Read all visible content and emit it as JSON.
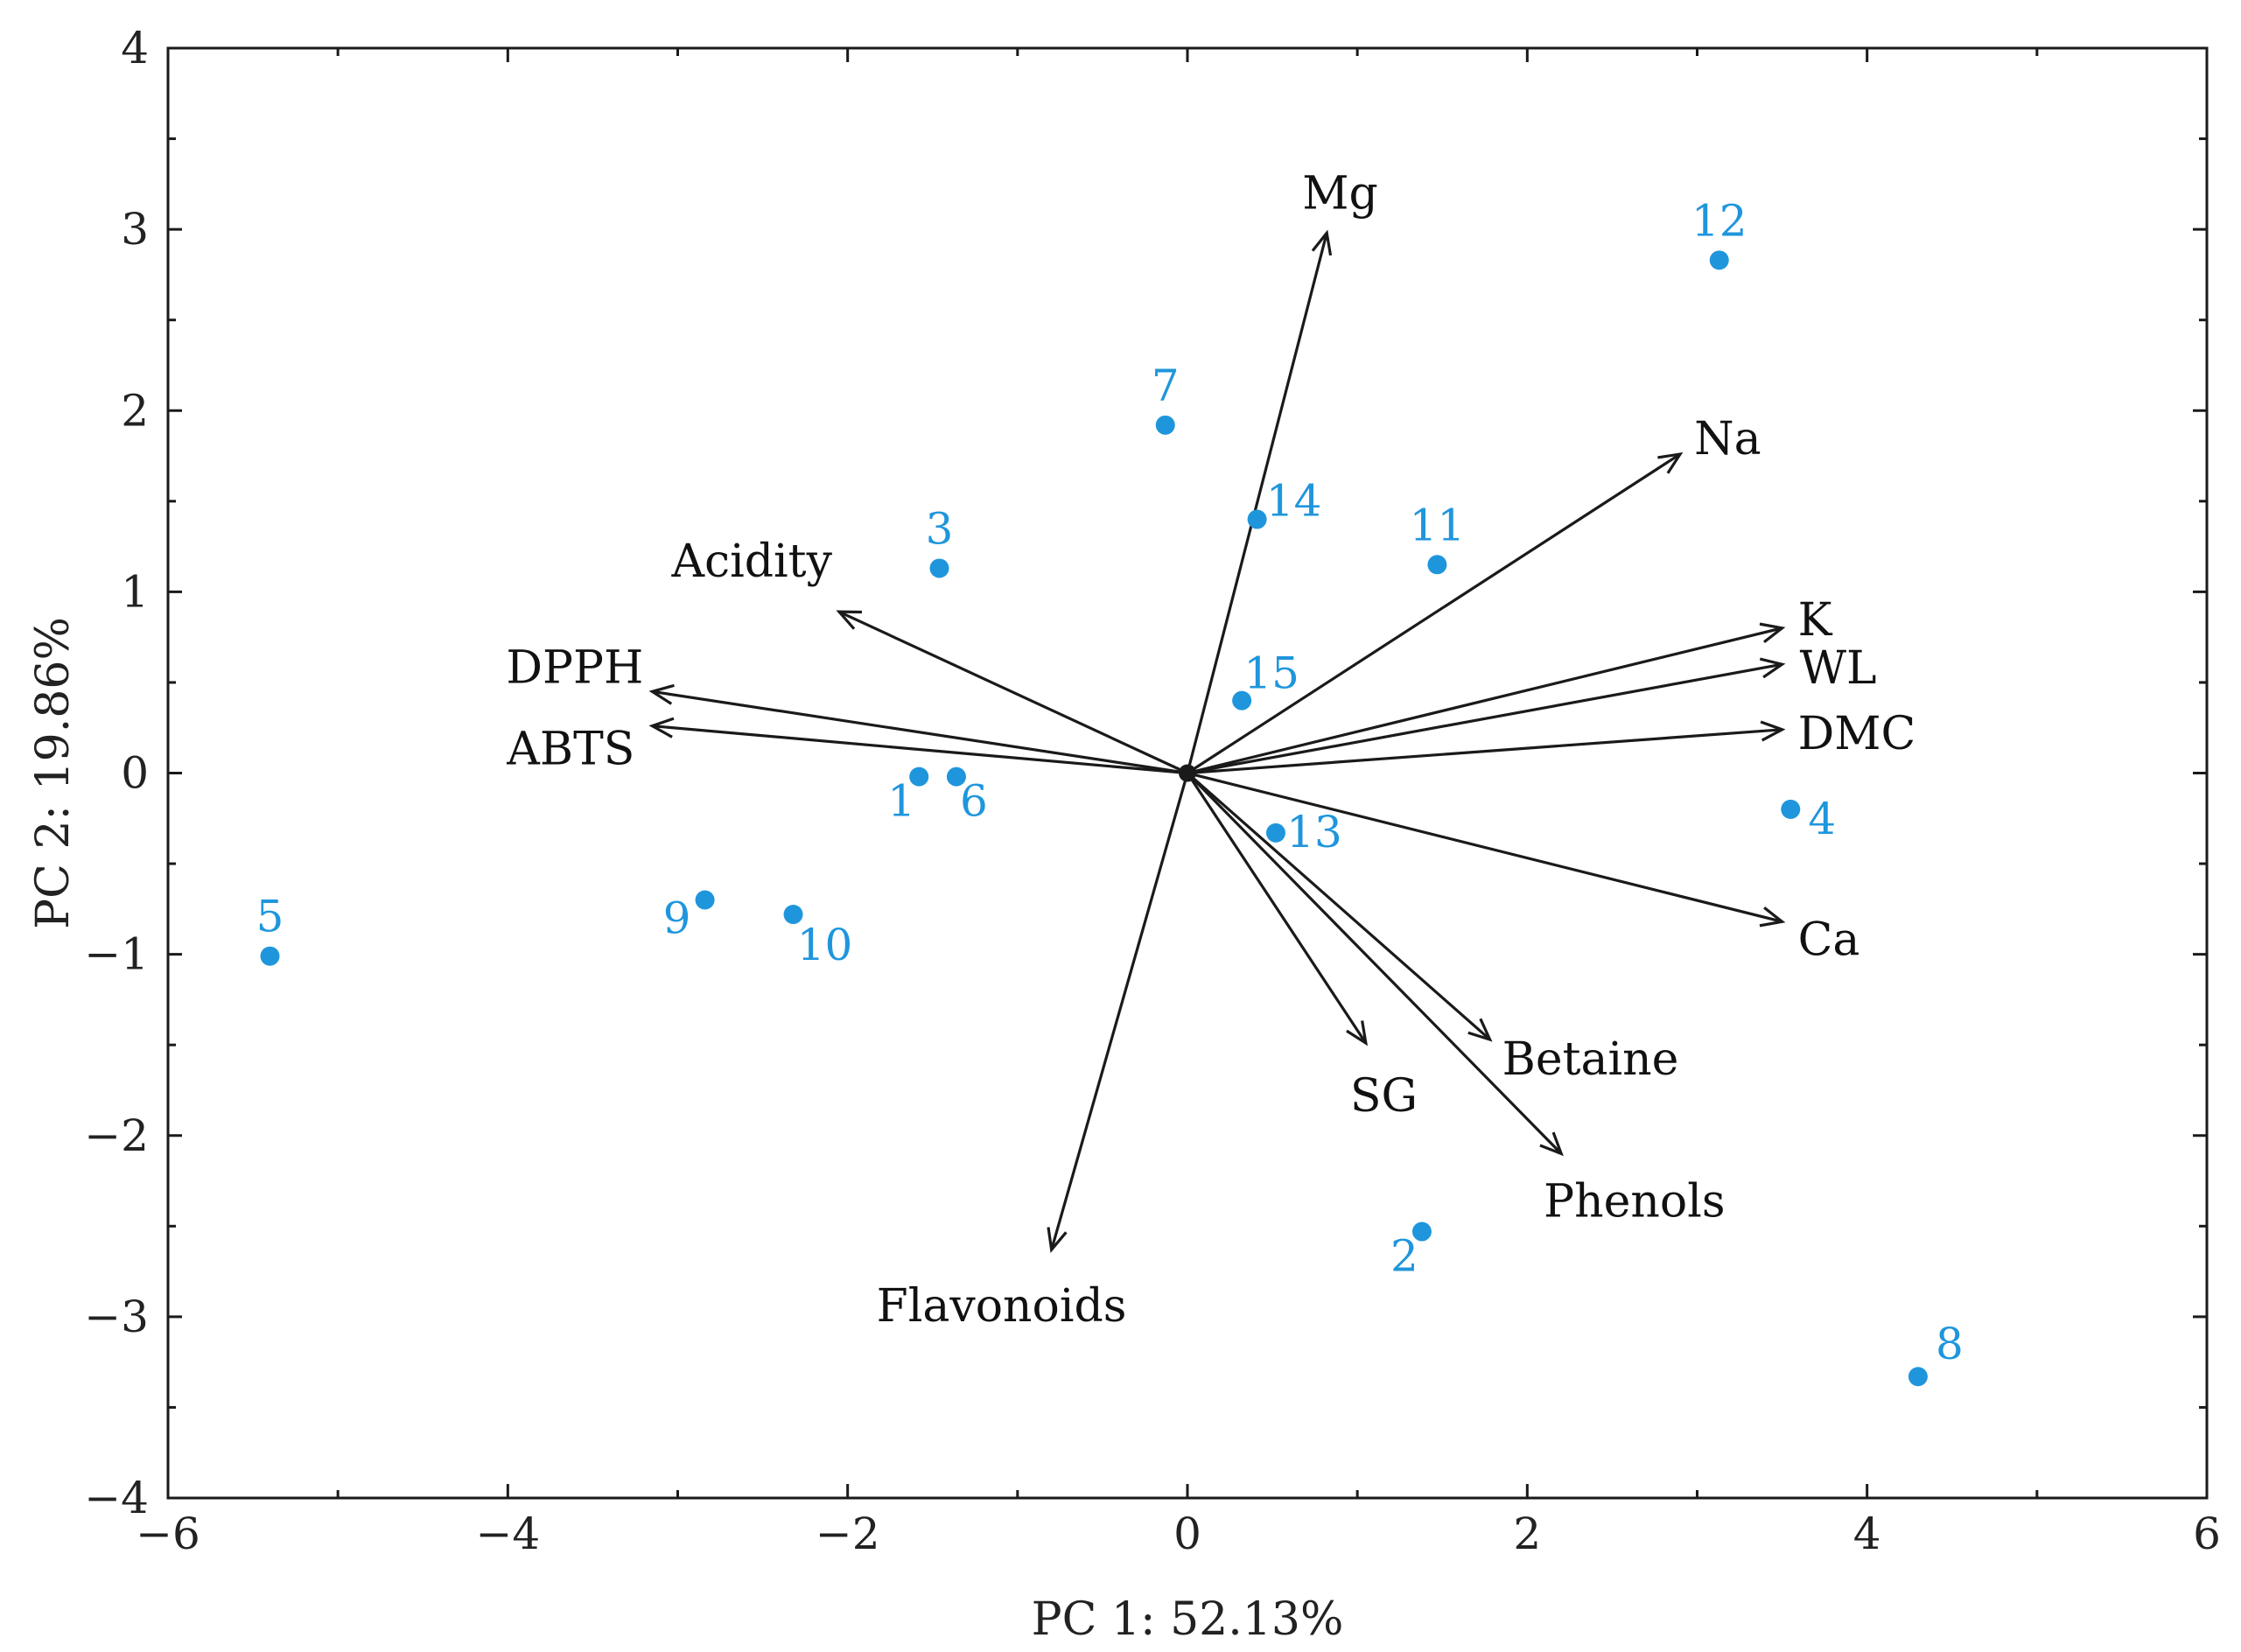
{
  "chart_data": {
    "type": "scatter",
    "subtype": "pca-biplot",
    "title": "",
    "xlabel": "PC 1: 52.13%",
    "ylabel": "PC 2: 19.86%",
    "xlim": [
      -6,
      6
    ],
    "ylim": [
      -4,
      4
    ],
    "xticks": [
      -6,
      -4,
      -2,
      0,
      2,
      4,
      6
    ],
    "yticks": [
      -4,
      -3,
      -2,
      -1,
      0,
      1,
      2,
      3,
      4
    ],
    "xtick_labels": [
      "−6",
      "−4",
      "−2",
      "0",
      "2",
      "4",
      "6"
    ],
    "ytick_labels": [
      "−4",
      "−3",
      "−2",
      "−1",
      "0",
      "1",
      "2",
      "3",
      "4"
    ],
    "point_color": "#1f96dc",
    "arrow_color": "#1a1a1a",
    "observations": [
      {
        "label": "1",
        "x": -1.58,
        "y": -0.02
      },
      {
        "label": "2",
        "x": 1.38,
        "y": -2.53
      },
      {
        "label": "3",
        "x": -1.46,
        "y": 1.13
      },
      {
        "label": "4",
        "x": 3.55,
        "y": -0.2
      },
      {
        "label": "5",
        "x": -5.4,
        "y": -1.01
      },
      {
        "label": "6",
        "x": -1.36,
        "y": -0.02
      },
      {
        "label": "7",
        "x": -0.13,
        "y": 1.92
      },
      {
        "label": "8",
        "x": 4.3,
        "y": -3.33
      },
      {
        "label": "9",
        "x": -2.84,
        "y": -0.7
      },
      {
        "label": "10",
        "x": -2.32,
        "y": -0.78
      },
      {
        "label": "11",
        "x": 1.47,
        "y": 1.15
      },
      {
        "label": "12",
        "x": 3.13,
        "y": 2.83
      },
      {
        "label": "13",
        "x": 0.52,
        "y": -0.33
      },
      {
        "label": "14",
        "x": 0.41,
        "y": 1.4
      },
      {
        "label": "15",
        "x": 0.32,
        "y": 0.4
      }
    ],
    "loadings": [
      {
        "label": "Mg",
        "x": 0.82,
        "y": 2.98
      },
      {
        "label": "Na",
        "x": 2.9,
        "y": 1.76
      },
      {
        "label": "K",
        "x": 3.5,
        "y": 0.8
      },
      {
        "label": "WL",
        "x": 3.5,
        "y": 0.6
      },
      {
        "label": "DMC",
        "x": 3.5,
        "y": 0.24
      },
      {
        "label": "Ca",
        "x": 3.5,
        "y": -0.82
      },
      {
        "label": "Acidity",
        "x": -2.05,
        "y": 0.89
      },
      {
        "label": "DPPH",
        "x": -3.15,
        "y": 0.45
      },
      {
        "label": "ABTS",
        "x": -3.15,
        "y": 0.26
      },
      {
        "label": "SG",
        "x": 1.05,
        "y": -1.49
      },
      {
        "label": "Betaine",
        "x": 1.78,
        "y": -1.47
      },
      {
        "label": "Phenols",
        "x": 2.2,
        "y": -2.1
      },
      {
        "label": "Flavonoids",
        "x": -0.8,
        "y": -2.63
      }
    ]
  }
}
